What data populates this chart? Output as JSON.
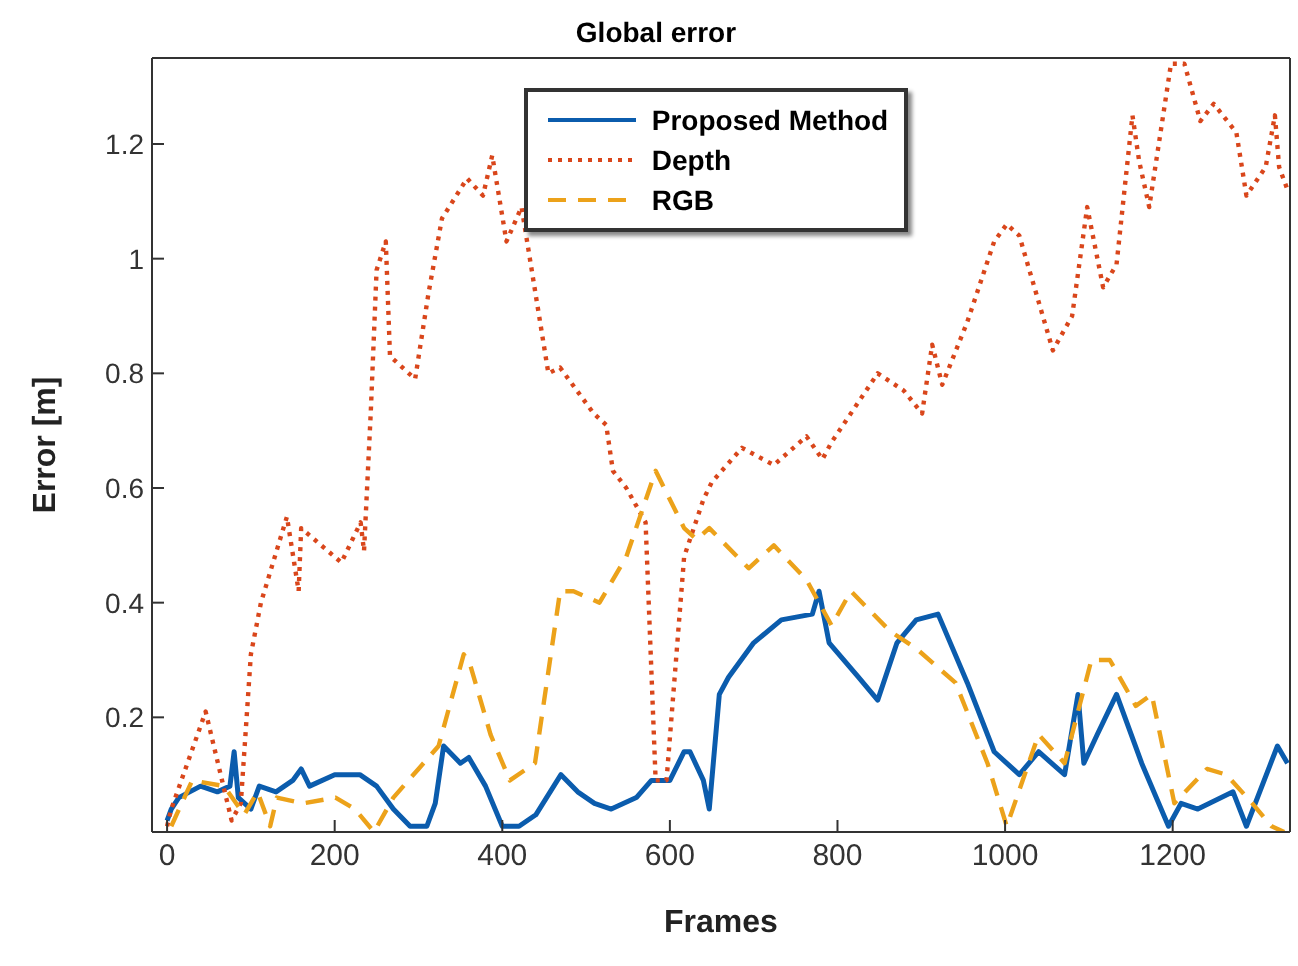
{
  "chart_data": {
    "type": "line",
    "title": "Global error",
    "xlabel": "Frames",
    "ylabel": "Error [m]",
    "xlim": [
      -18,
      1340
    ],
    "ylim": [
      0,
      1.35
    ],
    "xticks": [
      0,
      200,
      400,
      600,
      800,
      1000,
      1200
    ],
    "yticks": [
      0.2,
      0.4,
      0.6,
      0.8,
      1,
      1.2
    ],
    "grid": false,
    "legend": "top",
    "marker": "none",
    "series": [
      {
        "name": "Proposed Method",
        "color": "#0b5cad",
        "line_style": "solid",
        "x": [
          0,
          5,
          14,
          40,
          60,
          75,
          80,
          85,
          100,
          110,
          130,
          150,
          160,
          170,
          200,
          230,
          250,
          270,
          290,
          310,
          320,
          330,
          350,
          360,
          380,
          400,
          420,
          440,
          470,
          490,
          510,
          530,
          560,
          578,
          600,
          617,
          624,
          640,
          647,
          659,
          670,
          700,
          733,
          770,
          778,
          790,
          825,
          848,
          871,
          894,
          920,
          955,
          987,
          1017,
          1040,
          1071,
          1087,
          1094,
          1110,
          1133,
          1163,
          1195,
          1210,
          1230,
          1272,
          1288,
          1325,
          1337
        ],
        "values": [
          0.02,
          0.04,
          0.06,
          0.08,
          0.07,
          0.08,
          0.14,
          0.06,
          0.04,
          0.08,
          0.07,
          0.09,
          0.11,
          0.08,
          0.1,
          0.1,
          0.08,
          0.04,
          0.01,
          0.01,
          0.05,
          0.15,
          0.12,
          0.13,
          0.08,
          0.01,
          0.01,
          0.03,
          0.1,
          0.07,
          0.05,
          0.04,
          0.06,
          0.09,
          0.09,
          0.14,
          0.14,
          0.09,
          0.04,
          0.24,
          0.27,
          0.33,
          0.37,
          0.38,
          0.42,
          0.33,
          0.27,
          0.23,
          0.33,
          0.37,
          0.38,
          0.26,
          0.14,
          0.1,
          0.14,
          0.1,
          0.24,
          0.12,
          0.17,
          0.24,
          0.12,
          0.01,
          0.05,
          0.04,
          0.07,
          0.01,
          0.15,
          0.12
        ]
      },
      {
        "name": "Depth",
        "color": "#d9461b",
        "line_style": "dotted",
        "x": [
          0,
          5,
          46,
          77,
          88,
          100,
          112,
          143,
          157,
          160,
          208,
          231,
          235,
          243,
          250,
          261,
          266,
          296,
          312,
          328,
          358,
          377,
          388,
          405,
          423,
          455,
          469,
          509,
          524,
          532,
          548,
          571,
          583,
          596,
          617,
          640,
          650,
          686,
          724,
          763,
          782,
          793,
          848,
          879,
          901,
          913,
          925,
          955,
          987,
          1002,
          1017,
          1057,
          1080,
          1098,
          1117,
          1133,
          1152,
          1160,
          1172,
          1198,
          1214,
          1233,
          1249,
          1276,
          1288,
          1311,
          1322,
          1327,
          1337
        ],
        "values": [
          0.01,
          0.04,
          0.21,
          0.02,
          0.05,
          0.31,
          0.4,
          0.55,
          0.42,
          0.53,
          0.47,
          0.54,
          0.49,
          0.73,
          0.98,
          1.03,
          0.83,
          0.79,
          0.94,
          1.07,
          1.14,
          1.11,
          1.18,
          1.03,
          1.09,
          0.8,
          0.81,
          0.73,
          0.71,
          0.63,
          0.6,
          0.54,
          0.09,
          0.09,
          0.48,
          0.58,
          0.61,
          0.67,
          0.64,
          0.69,
          0.65,
          0.68,
          0.8,
          0.77,
          0.73,
          0.85,
          0.78,
          0.89,
          1.03,
          1.06,
          1.04,
          0.84,
          0.9,
          1.09,
          0.95,
          0.99,
          1.25,
          1.17,
          1.09,
          1.34,
          1.34,
          1.24,
          1.27,
          1.22,
          1.11,
          1.16,
          1.25,
          1.16,
          1.12
        ]
      },
      {
        "name": "RGB",
        "color": "#eca21a",
        "line_style": "dashed",
        "x": [
          5,
          30,
          68,
          92,
          108,
          123,
          131,
          162,
          201,
          224,
          247,
          270,
          300,
          324,
          354,
          362,
          386,
          409,
          439,
          469,
          485,
          516,
          548,
          583,
          617,
          632,
          647,
          694,
          724,
          763,
          793,
          816,
          863,
          894,
          941,
          979,
          1002,
          1040,
          1071,
          1103,
          1125,
          1156,
          1175,
          1202,
          1241,
          1264,
          1295,
          1318,
          1333
        ],
        "values": [
          0.01,
          0.09,
          0.08,
          0.03,
          0.07,
          0.01,
          0.06,
          0.05,
          0.06,
          0.04,
          0.0,
          0.06,
          0.11,
          0.15,
          0.31,
          0.29,
          0.17,
          0.09,
          0.12,
          0.42,
          0.42,
          0.4,
          0.48,
          0.63,
          0.53,
          0.51,
          0.53,
          0.46,
          0.5,
          0.44,
          0.36,
          0.42,
          0.35,
          0.32,
          0.26,
          0.12,
          0.01,
          0.17,
          0.12,
          0.3,
          0.3,
          0.22,
          0.24,
          0.05,
          0.11,
          0.1,
          0.05,
          0.01,
          0.0
        ]
      }
    ]
  }
}
